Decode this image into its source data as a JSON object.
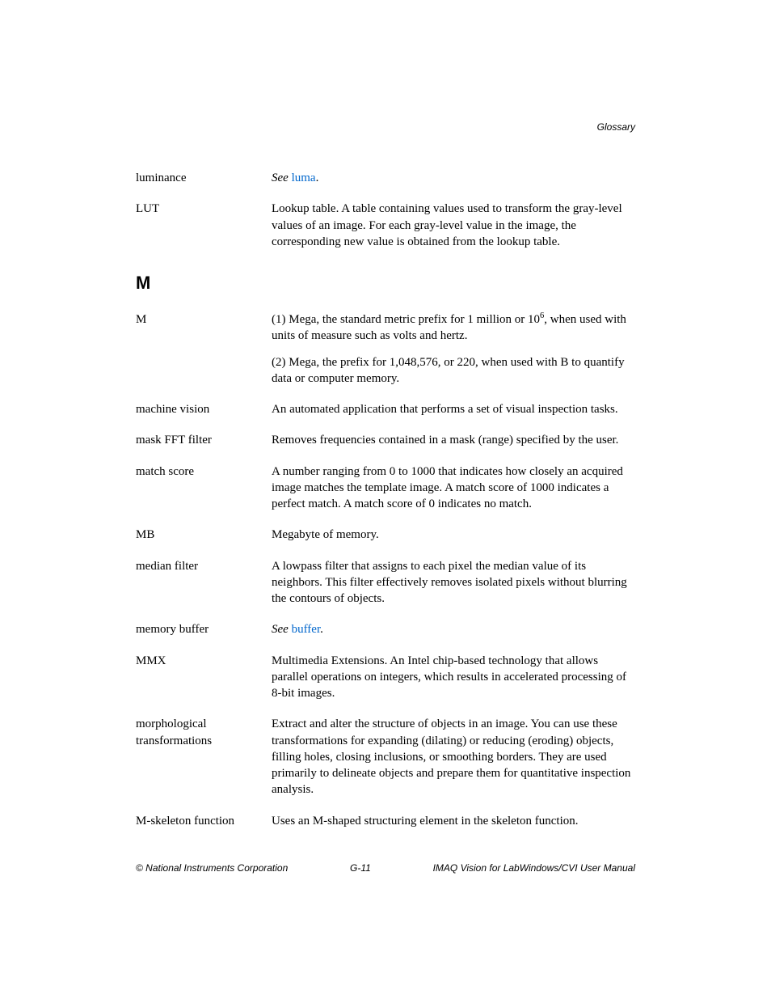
{
  "header": {
    "section": "Glossary"
  },
  "colors": {
    "text": "#000000",
    "link": "#0066cc",
    "background": "#ffffff"
  },
  "typography": {
    "body_family": "Times New Roman",
    "body_size_pt": 11,
    "heading_family": "Arial",
    "section_letter_size_pt": 16,
    "footer_size_pt": 9
  },
  "entries": {
    "luminance": {
      "term": "luminance",
      "see_prefix": "See ",
      "link_text": "luma",
      "suffix": "."
    },
    "lut": {
      "term": "LUT",
      "def": "Lookup table. A table containing values used to transform the gray-level values of an image. For each gray-level value in the image, the corresponding new value is obtained from the lookup table."
    }
  },
  "section_letter": "M",
  "entries_m": {
    "m": {
      "term": "M",
      "def1a": "(1) Mega, the standard metric prefix for 1 million or 10",
      "def1_sup": "6",
      "def1b": ", when used with units of measure such as volts and hertz.",
      "def2": "(2) Mega, the prefix for 1,048,576, or 220, when used with B to quantify data or computer memory."
    },
    "machine_vision": {
      "term": "machine vision",
      "def": "An automated application that performs a set of visual inspection tasks."
    },
    "mask_fft": {
      "term": "mask FFT filter",
      "def": "Removes frequencies contained in a mask (range) specified by the user."
    },
    "match_score": {
      "term": "match score",
      "def": "A number ranging from 0 to 1000 that indicates how closely an acquired image matches the template image. A match score of 1000 indicates a perfect match. A match score of 0 indicates no match."
    },
    "mb": {
      "term": "MB",
      "def": "Megabyte of memory."
    },
    "median_filter": {
      "term": "median filter",
      "def": "A lowpass filter that assigns to each pixel the median value of its neighbors. This filter effectively removes isolated pixels without blurring the contours of objects."
    },
    "memory_buffer": {
      "term": "memory buffer",
      "see_prefix": "See ",
      "link_text": "buffer",
      "suffix": "."
    },
    "mmx": {
      "term": "MMX",
      "def": "Multimedia Extensions. An Intel chip-based technology that allows parallel operations on integers, which results in accelerated processing of 8-bit images."
    },
    "morphological": {
      "term": "morphological transformations",
      "def": "Extract and alter the structure of objects in an image. You can use these transformations for expanding (dilating) or reducing (eroding) objects, filling holes, closing inclusions, or smoothing borders. They are used primarily to delineate objects and prepare them for quantitative inspection analysis."
    },
    "m_skeleton": {
      "term": "M-skeleton function",
      "def": "Uses an M-shaped structuring element in the skeleton function."
    }
  },
  "footer": {
    "left": "© National Instruments Corporation",
    "center": "G-11",
    "right": "IMAQ Vision for LabWindows/CVI User Manual"
  }
}
